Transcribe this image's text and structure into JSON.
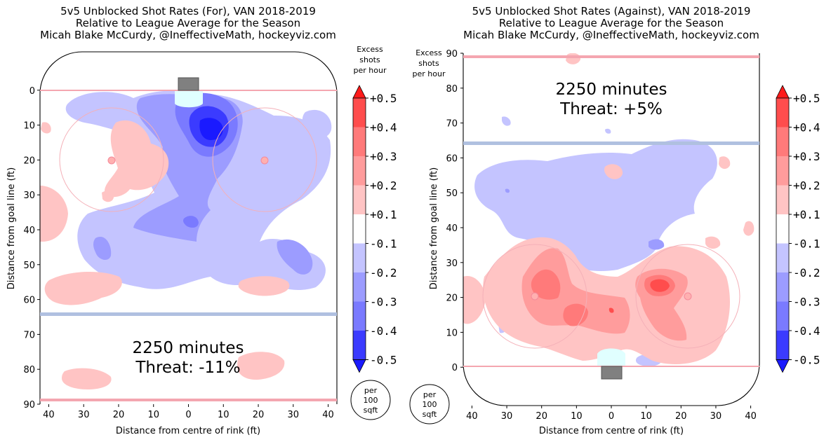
{
  "colors": {
    "neg5": "#1a1aff",
    "neg4": "#3b3bff",
    "neg3": "#7a7aff",
    "neg2": "#9c9cff",
    "neg1": "#c4c4ff",
    "pos1": "#ffc4c4",
    "pos2": "#ff9c9c",
    "pos3": "#ff7a7a",
    "pos4": "#ff4d4d",
    "pos5": "#ff1a1a",
    "goal_line": "#f4a6b0",
    "blue_line": "#b0c0e0",
    "crease": "#e0ffff",
    "net": "#808080"
  },
  "colorbar": {
    "title_lines": [
      "Excess",
      "shots",
      "per hour"
    ],
    "tick_labels": [
      "+0.5",
      "+0.4",
      "+0.3",
      "+0.2",
      "+0.1",
      "-0.1",
      "-0.2",
      "-0.3",
      "-0.4",
      "-0.5"
    ]
  },
  "per_label_lines": [
    "per",
    "100",
    "sqft"
  ],
  "chart_data": [
    {
      "type": "heatmap",
      "title_lines": [
        "5v5 Unblocked Shot Rates (For), VAN 2018-2019",
        "Relative to League Average for the Season",
        "Micah Blake McCurdy, @IneffectiveMath, hockeyviz.com"
      ],
      "xlabel": "Distance from centre of rink (ft)",
      "ylabel": "Distance from goal line (ft)",
      "x_ticks": [
        "40",
        "30",
        "20",
        "10",
        "0",
        "10",
        "20",
        "30",
        "40"
      ],
      "y_ticks": [
        "0",
        "10",
        "20",
        "30",
        "40",
        "50",
        "60",
        "70",
        "80",
        "90"
      ],
      "xlim": [
        -42.5,
        42.5
      ],
      "ylim": [
        -11,
        90
      ],
      "y_inverted": true,
      "levels": [
        -0.5,
        -0.4,
        -0.3,
        -0.2,
        -0.1,
        0.1,
        0.2,
        0.3,
        0.4,
        0.5
      ],
      "annotation": {
        "minutes": "2250 minutes",
        "threat": "Threat: -11%"
      }
    },
    {
      "type": "heatmap",
      "title_lines": [
        "5v5 Unblocked Shot Rates (Against), VAN 2018-2019",
        "Relative to League Average for the Season",
        "Micah Blake McCurdy, @IneffectiveMath, hockeyviz.com"
      ],
      "xlabel": "Distance from centre of rink (ft)",
      "ylabel": "Distance from goal line (ft)",
      "x_ticks": [
        "40",
        "30",
        "20",
        "10",
        "0",
        "10",
        "20",
        "30",
        "40"
      ],
      "y_ticks": [
        "0",
        "10",
        "20",
        "30",
        "40",
        "50",
        "60",
        "70",
        "80",
        "90"
      ],
      "xlim": [
        -42.5,
        42.5
      ],
      "ylim": [
        -11,
        90
      ],
      "y_inverted": false,
      "levels": [
        -0.5,
        -0.4,
        -0.3,
        -0.2,
        -0.1,
        0.1,
        0.2,
        0.3,
        0.4,
        0.5
      ],
      "annotation": {
        "minutes": "2250 minutes",
        "threat": "Threat: +5%"
      }
    }
  ]
}
